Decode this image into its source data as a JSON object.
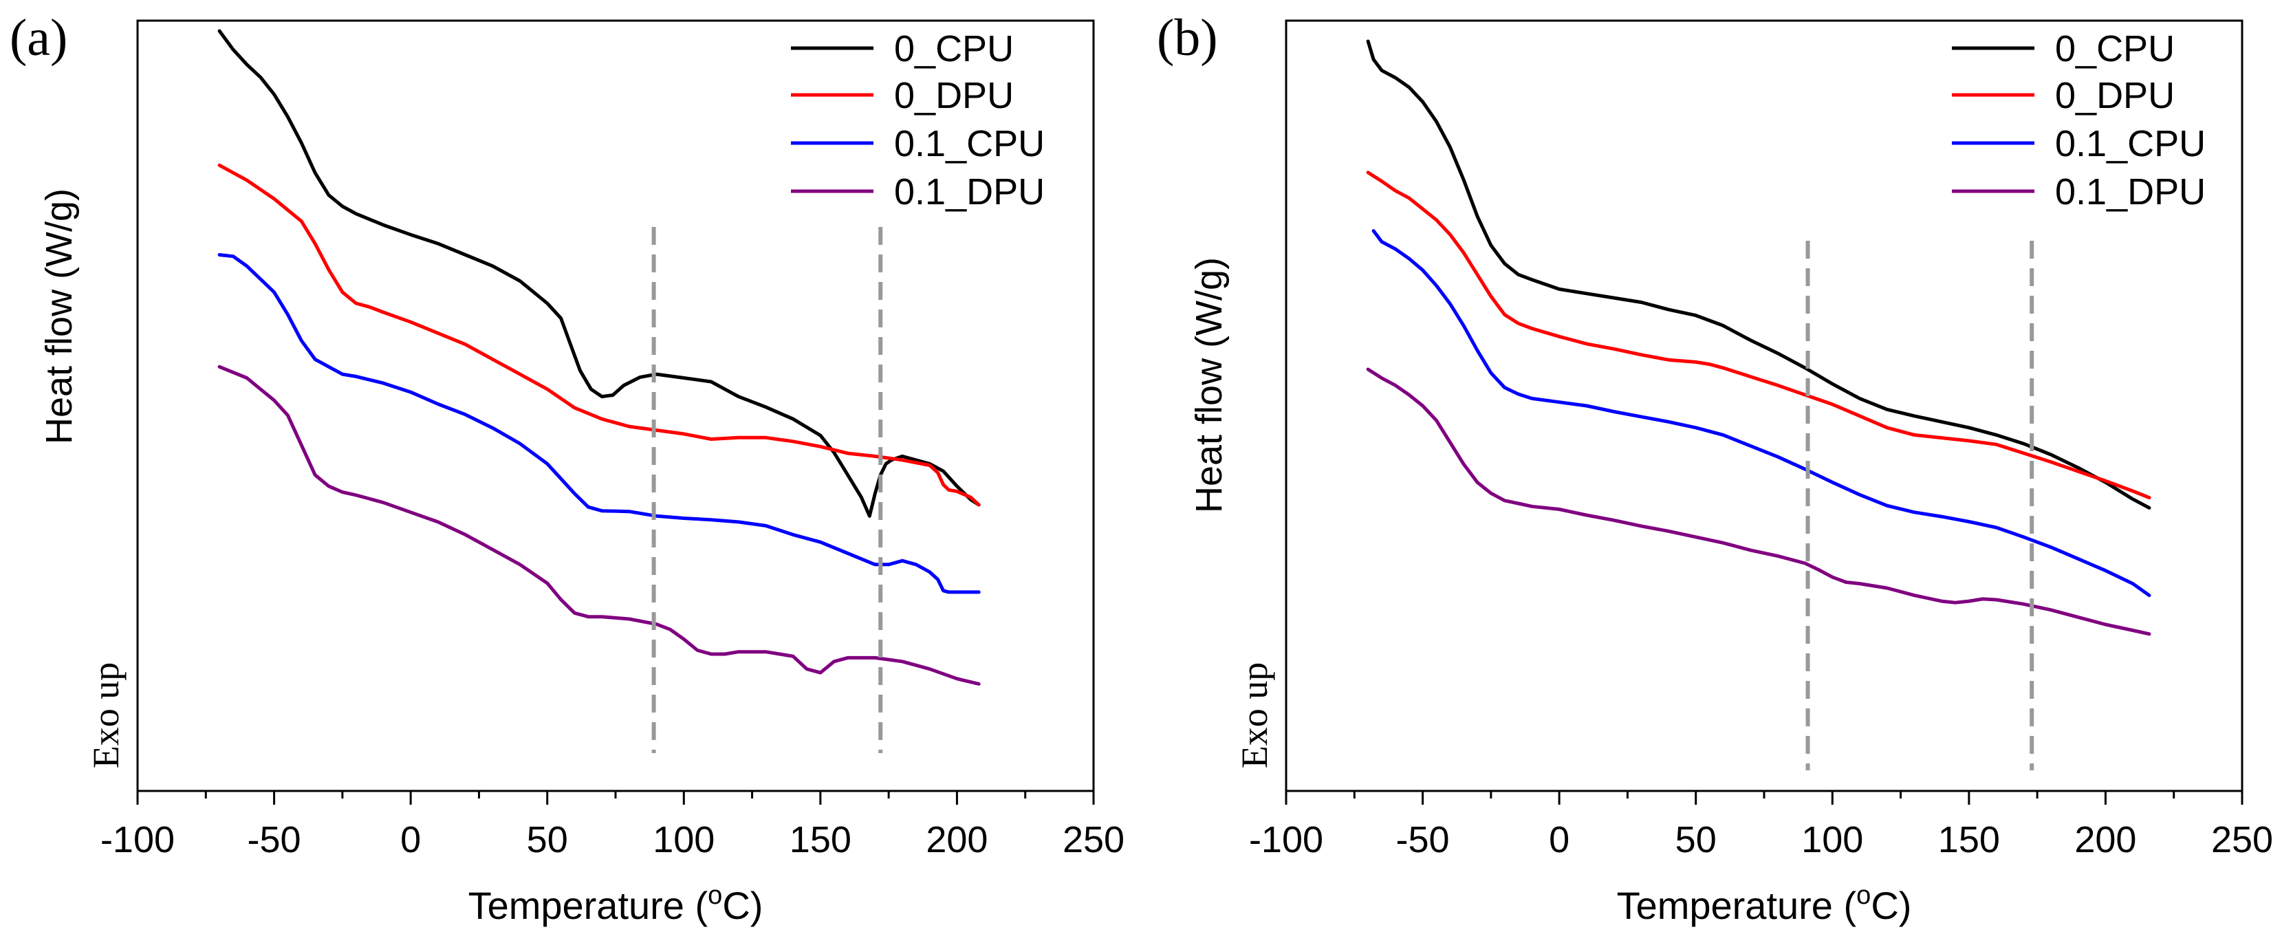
{
  "chart_data": [
    {
      "panel_label": "(a)",
      "type": "line",
      "xlabel": "Temperature",
      "xunit_open": " (",
      "xunit_sup": "o",
      "xunit_close": "C)",
      "ylabel": "Heat flow (W/g)",
      "exo_label": "Exo up",
      "xlim": [
        -100,
        250
      ],
      "ylim": [
        0,
        100
      ],
      "y_units": "arbitrary (no numeric ticks shown)",
      "xticks": [
        "-100",
        "-50",
        "0",
        "50",
        "100",
        "150",
        "200",
        "250"
      ],
      "grid": false,
      "legend_position": "top-right",
      "guide_lines": [
        89,
        172
      ],
      "series": [
        {
          "name": "0_CPU",
          "color": "#000000",
          "x": [
            -70,
            -65,
            -60,
            -55,
            -50,
            -45,
            -40,
            -35,
            -30,
            -25,
            -20,
            -10,
            0,
            10,
            20,
            30,
            40,
            50,
            55,
            58,
            62,
            66,
            70,
            74,
            78,
            84,
            90,
            100,
            110,
            115,
            120,
            130,
            140,
            150,
            155,
            160,
            165,
            168,
            170,
            172,
            174,
            176,
            180,
            185,
            190,
            195,
            200,
            205,
            208
          ],
          "y": [
            100,
            97.5,
            95.5,
            93.8,
            91.5,
            88.5,
            85,
            81,
            78,
            76.5,
            75.5,
            74,
            72.7,
            71.5,
            70,
            68.5,
            66.5,
            63.5,
            61.5,
            58.5,
            54.5,
            52,
            51,
            51.2,
            52.5,
            53.6,
            54,
            53.5,
            53,
            52,
            51,
            49.6,
            48,
            45.8,
            43.5,
            40.5,
            37.5,
            35,
            38,
            40.5,
            42,
            42.5,
            43,
            42.5,
            42,
            41,
            39,
            37.2,
            36.5
          ]
        },
        {
          "name": "0_DPU",
          "color": "#ff0000",
          "x": [
            -70,
            -60,
            -50,
            -40,
            -35,
            -30,
            -25,
            -20,
            -15,
            -10,
            0,
            10,
            20,
            30,
            40,
            50,
            60,
            70,
            80,
            90,
            100,
            110,
            120,
            130,
            140,
            150,
            160,
            170,
            180,
            190,
            193,
            195,
            197,
            200,
            205,
            208
          ],
          "y": [
            82,
            80,
            77.5,
            74.5,
            71.5,
            68,
            65,
            63.5,
            63,
            62.3,
            61,
            59.5,
            58,
            56,
            54,
            52,
            49.5,
            48,
            47,
            46.5,
            46,
            45.3,
            45.5,
            45.5,
            45,
            44.3,
            43.4,
            43,
            42.5,
            41.8,
            40.8,
            39.2,
            38.5,
            38.3,
            37.5,
            36.5
          ]
        },
        {
          "name": "0.1_CPU",
          "color": "#0000ff",
          "x": [
            -70,
            -65,
            -60,
            -50,
            -45,
            -40,
            -35,
            -30,
            -25,
            -20,
            -10,
            0,
            10,
            20,
            30,
            40,
            50,
            55,
            60,
            65,
            70,
            80,
            90,
            100,
            110,
            120,
            130,
            140,
            150,
            160,
            170,
            175,
            180,
            185,
            190,
            193,
            195,
            197,
            200,
            205,
            208
          ],
          "y": [
            70,
            69.8,
            68.5,
            65,
            62,
            58.5,
            56,
            55,
            54,
            53.7,
            52.8,
            51.6,
            50,
            48.6,
            46.8,
            44.7,
            42,
            40,
            38,
            36.2,
            35.7,
            35.6,
            35,
            34.7,
            34.5,
            34.2,
            33.7,
            32.5,
            31.5,
            30,
            28.5,
            28.5,
            29,
            28.5,
            27.5,
            26.5,
            25,
            24.8,
            24.8,
            24.8,
            24.8
          ]
        },
        {
          "name": "0.1_DPU",
          "color": "#800080",
          "x": [
            -70,
            -60,
            -50,
            -45,
            -40,
            -35,
            -30,
            -25,
            -20,
            -10,
            0,
            10,
            20,
            30,
            40,
            50,
            55,
            60,
            65,
            70,
            80,
            90,
            95,
            100,
            105,
            110,
            115,
            120,
            130,
            140,
            145,
            150,
            155,
            160,
            170,
            180,
            190,
            200,
            208
          ],
          "y": [
            55,
            53.5,
            50.5,
            48.5,
            44.5,
            40.5,
            39,
            38.2,
            37.8,
            36.8,
            35.5,
            34.2,
            32.5,
            30.5,
            28.5,
            26,
            23.8,
            22,
            21.5,
            21.5,
            21.2,
            20.5,
            19.8,
            18.5,
            17,
            16.5,
            16.5,
            16.8,
            16.8,
            16.2,
            14.5,
            14,
            15.5,
            16,
            16,
            15.5,
            14.5,
            13.2,
            12.5
          ]
        }
      ]
    },
    {
      "panel_label": "(b)",
      "type": "line",
      "xlabel": "Temperature",
      "xunit_open": " (",
      "xunit_sup": "o",
      "xunit_close": "C)",
      "ylabel": "Heat flow (W/g)",
      "exo_label": "Exo up",
      "xlim": [
        -100,
        250
      ],
      "ylim": [
        0,
        100
      ],
      "y_units": "arbitrary (no numeric ticks shown)",
      "xticks": [
        "-100",
        "-50",
        "0",
        "50",
        "100",
        "150",
        "200",
        "250"
      ],
      "grid": false,
      "legend_position": "top-right",
      "guide_lines": [
        91,
        173
      ],
      "series": [
        {
          "name": "0_CPU",
          "color": "#000000",
          "x": [
            -70,
            -68,
            -65,
            -60,
            -55,
            -50,
            -45,
            -40,
            -35,
            -30,
            -25,
            -20,
            -15,
            -10,
            0,
            10,
            20,
            30,
            40,
            50,
            60,
            70,
            80,
            90,
            100,
            110,
            120,
            130,
            140,
            150,
            160,
            170,
            180,
            190,
            200,
            210,
            216
          ],
          "y": [
            100,
            97.5,
            96,
            95,
            93.7,
            91.7,
            89,
            85.5,
            81,
            76,
            72,
            69.5,
            68,
            67.3,
            66,
            65.4,
            64.8,
            64.2,
            63.2,
            62.4,
            61,
            59,
            57.2,
            55.2,
            53,
            51,
            49.5,
            48.6,
            47.8,
            47,
            46,
            44.8,
            43.3,
            41.5,
            39.5,
            37.2,
            36
          ]
        },
        {
          "name": "0_DPU",
          "color": "#ff0000",
          "x": [
            -70,
            -65,
            -60,
            -55,
            -50,
            -45,
            -40,
            -35,
            -30,
            -25,
            -20,
            -15,
            -10,
            0,
            10,
            20,
            30,
            40,
            50,
            55,
            60,
            70,
            80,
            90,
            100,
            110,
            120,
            130,
            140,
            150,
            160,
            170,
            180,
            190,
            200,
            210,
            216
          ],
          "y": [
            82,
            80.8,
            79.5,
            78.5,
            77,
            75.5,
            73.5,
            71,
            68,
            65,
            62.5,
            61.3,
            60.6,
            59.5,
            58.5,
            57.8,
            57,
            56.3,
            56,
            55.7,
            55.2,
            54,
            52.8,
            51.5,
            50.2,
            48.6,
            47,
            46,
            45.6,
            45.2,
            44.7,
            43.5,
            42.3,
            41,
            39.7,
            38.3,
            37.4
          ]
        },
        {
          "name": "0.1_CPU",
          "color": "#0000ff",
          "x": [
            -68,
            -65,
            -60,
            -55,
            -50,
            -45,
            -40,
            -35,
            -30,
            -25,
            -20,
            -15,
            -10,
            0,
            10,
            20,
            30,
            40,
            50,
            60,
            70,
            80,
            90,
            100,
            110,
            120,
            130,
            140,
            150,
            160,
            170,
            180,
            190,
            200,
            210,
            216
          ],
          "y": [
            74,
            72.5,
            71.5,
            70.2,
            68.6,
            66.5,
            64,
            61,
            57.6,
            54.5,
            52.5,
            51.6,
            51,
            50.5,
            50,
            49.2,
            48.5,
            47.8,
            47,
            46,
            44.5,
            43,
            41.3,
            39.5,
            37.8,
            36.3,
            35.4,
            34.8,
            34.1,
            33.3,
            32,
            30.6,
            29,
            27.4,
            25.6,
            24
          ]
        },
        {
          "name": "0.1_DPU",
          "color": "#800080",
          "x": [
            -70,
            -65,
            -60,
            -55,
            -50,
            -45,
            -40,
            -35,
            -30,
            -25,
            -20,
            -15,
            -10,
            0,
            10,
            20,
            30,
            40,
            50,
            60,
            70,
            80,
            90,
            95,
            100,
            105,
            110,
            120,
            130,
            140,
            145,
            150,
            155,
            160,
            170,
            180,
            190,
            200,
            210,
            216
          ],
          "y": [
            55,
            53.8,
            52.8,
            51.5,
            50,
            48,
            45,
            42,
            39.5,
            38,
            37,
            36.6,
            36.2,
            35.8,
            35,
            34.3,
            33.5,
            32.8,
            32,
            31.2,
            30.2,
            29.4,
            28.4,
            27.5,
            26.5,
            25.8,
            25.6,
            25,
            24,
            23.2,
            23,
            23.2,
            23.5,
            23.4,
            22.8,
            22,
            21,
            20,
            19.2,
            18.7
          ]
        }
      ]
    }
  ]
}
